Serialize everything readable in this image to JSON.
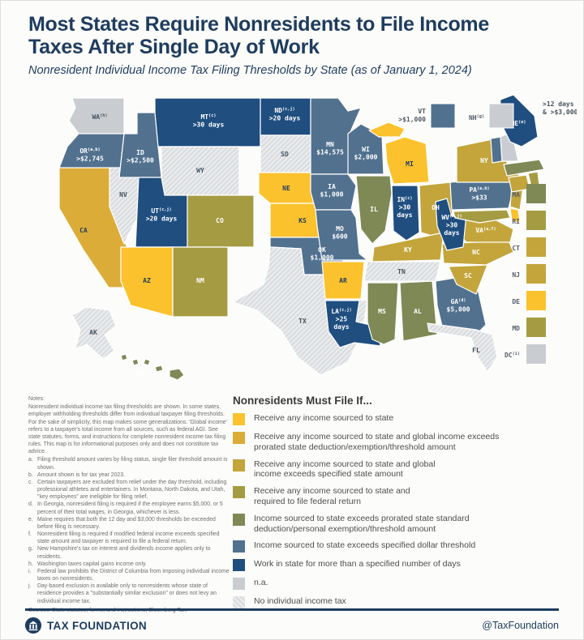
{
  "header": {
    "title_line1": "Most States Require Nonresidents to File Income",
    "title_line2": "Taxes After Single Day of Work",
    "subtitle": "Nonresident Individual Income Tax Filing Thresholds by State (as of January 1, 2024)"
  },
  "categories": [
    {
      "id": 1,
      "color": "#FBC22D",
      "lines": [
        "Receive any income sourced to state"
      ]
    },
    {
      "id": 2,
      "color": "#DCAC38",
      "lines": [
        "Receive any income sourced to state and global income exceeds",
        "prorated state deduction/exemption/threshold amount"
      ]
    },
    {
      "id": 3,
      "color": "#C3A53C",
      "lines": [
        "Receive any income sourced to state and global",
        "income exceeds specified state amount"
      ]
    },
    {
      "id": 4,
      "color": "#A59B42",
      "lines": [
        "Receive any income sourced to state and",
        "required to file federal return"
      ]
    },
    {
      "id": 5,
      "color": "#7E8955",
      "lines": [
        "Income sourced to state exceeds prorated state standard",
        "deduction/personal exemption/threshold amount"
      ]
    },
    {
      "id": 6,
      "color": "#51718F",
      "lines": [
        "Income sourced to state exceeds specified dollar threshold"
      ]
    },
    {
      "id": 7,
      "color": "#1F4E7F",
      "lines": [
        "Work in state for more than a specified number of days"
      ]
    },
    {
      "id": 8,
      "color": "#C9CDD1",
      "lines": [
        "n.a."
      ]
    },
    {
      "id": 9,
      "color": "#E9EBED",
      "hatch": true,
      "lines": [
        "No individual income tax"
      ]
    }
  ],
  "map": {
    "states": [
      {
        "code": "WA",
        "sup": "(h)",
        "cat": 8
      },
      {
        "code": "OR",
        "sup": "(a,b)",
        "value": [
          ">$2,745"
        ],
        "cat": 6
      },
      {
        "code": "CA",
        "cat": 2
      },
      {
        "code": "NV",
        "cat": 9
      },
      {
        "code": "ID",
        "value": [
          ">$2,500"
        ],
        "cat": 6
      },
      {
        "code": "MT",
        "sup": "(c)",
        "value": [
          ">30 days"
        ],
        "cat": 7
      },
      {
        "code": "WY",
        "cat": 9
      },
      {
        "code": "UT",
        "sup": "(c,j)",
        "value": [
          ">20 days"
        ],
        "cat": 7
      },
      {
        "code": "CO",
        "cat": 4
      },
      {
        "code": "AZ",
        "cat": 1
      },
      {
        "code": "NM",
        "cat": 4
      },
      {
        "code": "ND",
        "sup": "(c,j)",
        "value": [
          ">20 days"
        ],
        "cat": 7
      },
      {
        "code": "SD",
        "cat": 9
      },
      {
        "code": "NE",
        "cat": 1
      },
      {
        "code": "KS",
        "cat": 1
      },
      {
        "code": "OK",
        "value": [
          "$1,000"
        ],
        "cat": 6
      },
      {
        "code": "TX",
        "cat": 9
      },
      {
        "code": "MN",
        "value": [
          "$14,575"
        ],
        "cat": 6
      },
      {
        "code": "IA",
        "value": [
          "$1,000"
        ],
        "cat": 6
      },
      {
        "code": "MO",
        "value": [
          "$600"
        ],
        "cat": 6
      },
      {
        "code": "AR",
        "cat": 1
      },
      {
        "code": "LA",
        "sup": "(c,j)",
        "value": [
          ">25",
          "days"
        ],
        "cat": 7
      },
      {
        "code": "WI",
        "value": [
          "$2,000"
        ],
        "cat": 6
      },
      {
        "code": "IL",
        "cat": 5
      },
      {
        "code": "MI",
        "cat": 1
      },
      {
        "code": "IN",
        "sup": "(c)",
        "value": [
          ">30",
          "days"
        ],
        "cat": 7
      },
      {
        "code": "OH",
        "cat": 3
      },
      {
        "code": "KY",
        "cat": 3
      },
      {
        "code": "TN",
        "cat": 9
      },
      {
        "code": "MS",
        "cat": 5
      },
      {
        "code": "AL",
        "cat": 5
      },
      {
        "code": "GA",
        "sup": "(d)",
        "value": [
          "$5,000"
        ],
        "cat": 6
      },
      {
        "code": "FL",
        "cat": 9
      },
      {
        "code": "SC",
        "cat": 3
      },
      {
        "code": "NC",
        "cat": 3
      },
      {
        "code": "VA",
        "sup": "(a,f)",
        "cat": 3
      },
      {
        "code": "WV",
        "sup": "(c,j)",
        "value": [
          ">30",
          "days"
        ],
        "cat": 7
      },
      {
        "code": "PA",
        "sup": "(a,b)",
        "value": [
          ">$33"
        ],
        "cat": 6
      },
      {
        "code": "MD",
        "cat": 4
      },
      {
        "code": "DE",
        "cat": 1
      },
      {
        "code": "NJ",
        "cat": 3
      },
      {
        "code": "NY",
        "cat": 3
      },
      {
        "code": "VT",
        "cat": 6
      },
      {
        "code": "NH",
        "cat": 8
      },
      {
        "code": "MA",
        "cat": 5
      },
      {
        "code": "CT",
        "cat": 3
      },
      {
        "code": "RI",
        "cat": 4
      },
      {
        "code": "ME",
        "sup": "(e)",
        "cat": 7
      },
      {
        "code": "AK",
        "cat": 9
      },
      {
        "code": "HI",
        "cat": 5
      }
    ],
    "insets": [
      {
        "code": "VT",
        "lines": [
          "VT",
          ">$1,000"
        ],
        "cat": 6
      },
      {
        "code": "NH",
        "lines": [
          "NH"
        ],
        "sup": "(g)",
        "cat": 8
      }
    ],
    "me_annotation": {
      "lines": [
        ">12 days",
        "& >$3,000"
      ]
    },
    "small_states": [
      {
        "code": "MA",
        "cat": 5
      },
      {
        "code": "RI",
        "cat": 4
      },
      {
        "code": "CT",
        "cat": 3
      },
      {
        "code": "NJ",
        "cat": 3
      },
      {
        "code": "DE",
        "cat": 1
      },
      {
        "code": "MD",
        "cat": 4
      },
      {
        "code": "DC",
        "sup": "(i)",
        "cat": 8
      }
    ]
  },
  "legend": {
    "title": "Nonresidents Must File If..."
  },
  "notes": {
    "heading": "Notes:",
    "intro": "Nonresident individual income tax filing thresholds are shown. In some states, employer withholding thresholds differ from individual taxpayer filing thresholds. For the sake of simplicity, this map makes some generalizations. 'Global income' refers to a taxpayer's total income from all sources, such as federal AGI. See state statutes, forms, and instructions for complete nonresident income tax filing rules. This map is for informational purposes only and does not constitute tax advice.",
    "items": [
      {
        "key": "a.",
        "text": "Filing threshold amount varies by filing status, single filer threshold amount is shown."
      },
      {
        "key": "b.",
        "text": "Amount shown is for tax year 2023."
      },
      {
        "key": "c.",
        "text": "Certain taxpayers are excluded from relief under the day threshold, including professional athletes and entertainers. In Montana, North Dakota, and Utah, \"key employees\" are ineligible for filing relief."
      },
      {
        "key": "d.",
        "text": "In Georgia, nonresident filing is required if the employee earns $5,000, or 5 percent of their total wages, in Georgia, whichever is less."
      },
      {
        "key": "e.",
        "text": "Maine requires that both the 12 day and $3,000 thresholds be exceeded before filing is necessary."
      },
      {
        "key": "f.",
        "text": "Nonresident filing is required if modified federal income exceeds specified state amount and taxpayer is required to file a federal return."
      },
      {
        "key": "g.",
        "text": "New Hampshire's tax on interest and dividends income applies only to residents."
      },
      {
        "key": "h.",
        "text": "Washington taxes capital gains income only."
      },
      {
        "key": "i.",
        "text": "Federal law prohibits the District of Columbia from imposing individual income taxes on nonresidents."
      },
      {
        "key": "j.",
        "text": "Day-based exclusion is available only to nonresidents whose state of residence provides a \"substantially similar exclusion\" or does not levy an individual income tax."
      }
    ],
    "sources": "Sources: State statutes, forms, and instructions; Bloomberg Tax."
  },
  "footer": {
    "brand": "TAX FOUNDATION",
    "handle": "@TaxFoundation"
  }
}
